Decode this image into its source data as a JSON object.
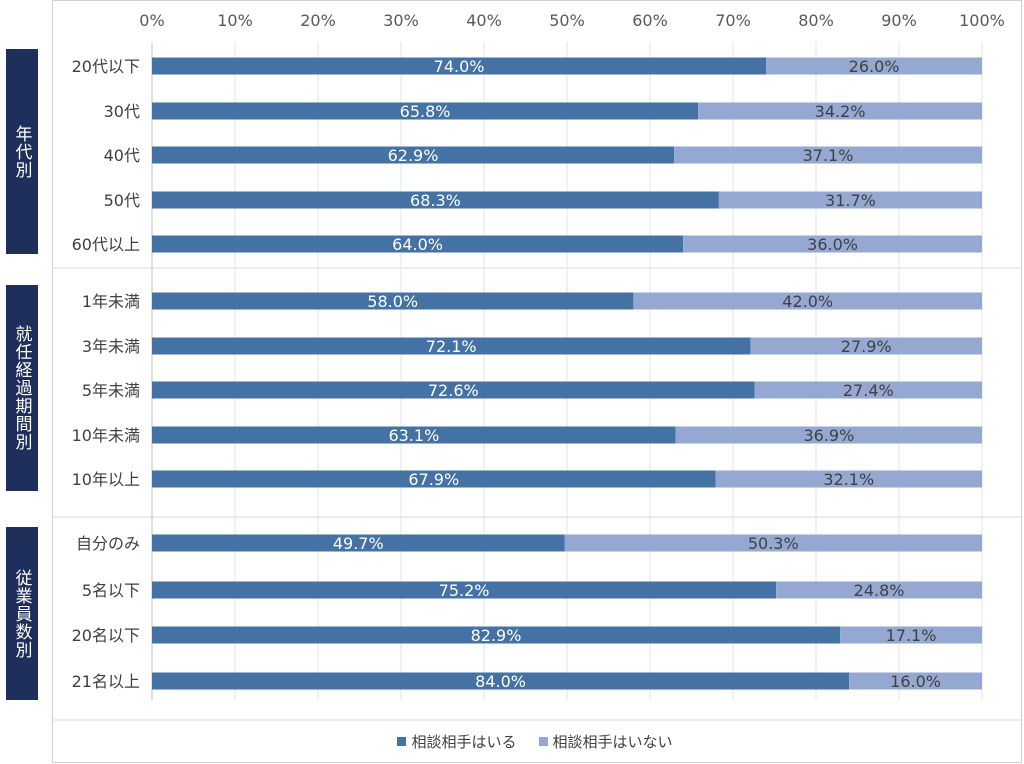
{
  "chart_data": {
    "type": "bar",
    "orientation": "horizontal",
    "stacked": true,
    "percent_stacked": true,
    "x_ticks": [
      "0%",
      "10%",
      "20%",
      "30%",
      "40%",
      "50%",
      "60%",
      "70%",
      "80%",
      "90%",
      "100%"
    ],
    "xlim": [
      0,
      100
    ],
    "grid": true,
    "legend_position": "bottom",
    "groups": [
      {
        "name": "年代別",
        "categories": [
          "20代以下",
          "30代",
          "40代",
          "50代",
          "60代以上"
        ]
      },
      {
        "name": "就任経過期間別",
        "categories": [
          "1年未満",
          "3年未満",
          "5年未満",
          "10年未満",
          "10年以上"
        ]
      },
      {
        "name": "従業員数別",
        "categories": [
          "自分のみ",
          "5名以下",
          "20名以下",
          "21名以上"
        ]
      }
    ],
    "series": [
      {
        "name": "相談相手はいる",
        "color": "#4472a5",
        "values": [
          74.0,
          65.8,
          62.9,
          68.3,
          64.0,
          58.0,
          72.1,
          72.6,
          63.1,
          67.9,
          49.7,
          75.2,
          82.9,
          84.0
        ],
        "labels": [
          "74.0%",
          "65.8%",
          "62.9%",
          "68.3%",
          "64.0%",
          "58.0%",
          "72.1%",
          "72.6%",
          "63.1%",
          "67.9%",
          "49.7%",
          "75.2%",
          "82.9%",
          "84.0%"
        ]
      },
      {
        "name": "相談相手はいない",
        "color": "#95a8d1",
        "values": [
          26.0,
          34.2,
          37.1,
          31.7,
          36.0,
          42.0,
          27.9,
          27.4,
          36.9,
          32.1,
          50.3,
          24.8,
          17.1,
          16.0
        ],
        "labels": [
          "26.0%",
          "34.2%",
          "37.1%",
          "31.7%",
          "36.0%",
          "42.0%",
          "27.9%",
          "27.4%",
          "36.9%",
          "32.1%",
          "50.3%",
          "24.8%",
          "17.1%",
          "16.0%"
        ]
      }
    ]
  }
}
